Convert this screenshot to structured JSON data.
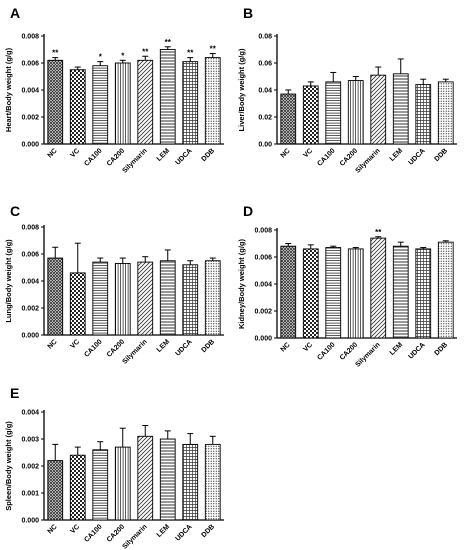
{
  "chart_data": [
    {
      "type": "bar",
      "panel": "A",
      "ylabel": "Heart/Body weight (g/g)",
      "categories": [
        "NC",
        "VC",
        "CA100",
        "CA200",
        "Silymarin",
        "LEM",
        "UDCA",
        "DDB"
      ],
      "values": [
        0.0062,
        0.0055,
        0.0058,
        0.006,
        0.0062,
        0.007,
        0.0061,
        0.0064
      ],
      "errors": [
        0.0002,
        0.0002,
        0.0003,
        0.0002,
        0.0003,
        0.0002,
        0.0003,
        0.0003
      ],
      "annotations": [
        "**",
        "",
        "*",
        "*",
        "**",
        "**",
        "**",
        "**"
      ],
      "ylim": [
        0,
        0.008
      ],
      "yticks": [
        "0.000",
        "0.002",
        "0.004",
        "0.006",
        "0.008"
      ],
      "grid": false
    },
    {
      "type": "bar",
      "panel": "B",
      "ylabel": "Liver/Body weight (g/g)",
      "categories": [
        "NC",
        "VC",
        "CA100",
        "CA200",
        "Silymarin",
        "LEM",
        "UDCA",
        "DDB"
      ],
      "values": [
        0.037,
        0.043,
        0.046,
        0.047,
        0.051,
        0.052,
        0.044,
        0.046
      ],
      "errors": [
        0.003,
        0.003,
        0.007,
        0.003,
        0.006,
        0.011,
        0.004,
        0.002
      ],
      "annotations": [
        "",
        "",
        "",
        "",
        "",
        "",
        "",
        ""
      ],
      "ylim": [
        0,
        0.08
      ],
      "yticks": [
        "0.00",
        "0.02",
        "0.04",
        "0.06",
        "0.08"
      ],
      "grid": false
    },
    {
      "type": "bar",
      "panel": "C",
      "ylabel": "Lung/Body weight (g/g)",
      "categories": [
        "NC",
        "VC",
        "CA100",
        "CA200",
        "Silymarin",
        "LEM",
        "UDCA",
        "DDB"
      ],
      "values": [
        0.0057,
        0.0046,
        0.0054,
        0.0053,
        0.0054,
        0.0055,
        0.0052,
        0.0055
      ],
      "errors": [
        0.0008,
        0.0022,
        0.0003,
        0.0004,
        0.0004,
        0.0008,
        0.0003,
        0.0002
      ],
      "annotations": [
        "",
        "",
        "",
        "",
        "",
        "",
        "",
        ""
      ],
      "ylim": [
        0,
        0.008
      ],
      "yticks": [
        "0.000",
        "0.002",
        "0.004",
        "0.006",
        "0.008"
      ],
      "grid": false
    },
    {
      "type": "bar",
      "panel": "D",
      "ylabel": "Kidney/Body weight (g/g)",
      "categories": [
        "NC",
        "VC",
        "CA100",
        "CA200",
        "Silymarin",
        "LEM",
        "UDCA",
        "DDB"
      ],
      "values": [
        0.0068,
        0.0066,
        0.0067,
        0.0066,
        0.0074,
        0.0068,
        0.0066,
        0.0071
      ],
      "errors": [
        0.0002,
        0.0003,
        0.0001,
        0.0001,
        0.0001,
        0.0003,
        0.0001,
        0.0001
      ],
      "annotations": [
        "",
        "",
        "",
        "",
        "**",
        "",
        "",
        ""
      ],
      "ylim": [
        0,
        0.008
      ],
      "yticks": [
        "0.000",
        "0.002",
        "0.004",
        "0.006",
        "0.008"
      ],
      "grid": false
    },
    {
      "type": "bar",
      "panel": "E",
      "ylabel": "Spleen/Body weight (g/g)",
      "categories": [
        "NC",
        "VC",
        "CA100",
        "CA200",
        "Silymarin",
        "LEM",
        "UDCA",
        "DDB"
      ],
      "values": [
        0.0022,
        0.0024,
        0.0026,
        0.0027,
        0.0031,
        0.003,
        0.0028,
        0.0028
      ],
      "errors": [
        0.0006,
        0.0003,
        0.0003,
        0.0007,
        0.0004,
        0.0003,
        0.0004,
        0.0003
      ],
      "annotations": [
        "",
        "",
        "",
        "",
        "",
        "",
        "",
        ""
      ],
      "ylim": [
        0,
        0.004
      ],
      "yticks": [
        "0.000",
        "0.001",
        "0.002",
        "0.003",
        "0.004"
      ],
      "grid": false
    }
  ]
}
